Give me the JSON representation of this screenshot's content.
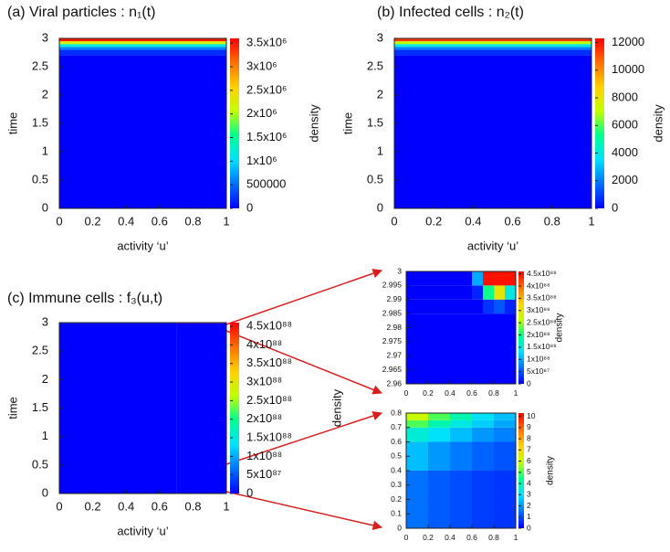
{
  "colormap": [
    "#0000ff",
    "#0070ff",
    "#00e0ff",
    "#00ff90",
    "#c0ff00",
    "#ffd000",
    "#ff7000",
    "#ff0000"
  ],
  "chart_data": [
    {
      "type": "heatmap",
      "title": "(a) Viral particles : n₁(t)",
      "xlabel": "activity ‘u’",
      "ylabel": "time",
      "colorbar_label": "density",
      "xlim": [
        0,
        1
      ],
      "xticks": [
        0,
        0.2,
        0.4,
        0.6,
        0.8,
        1
      ],
      "ylim": [
        0,
        3
      ],
      "yticks": [
        0,
        0.5,
        1,
        1.5,
        2,
        2.5,
        3
      ],
      "clim": [
        0,
        3600000
      ],
      "cticks": [
        0,
        500000,
        {
          "value": 1000000,
          "label": "1x10⁶"
        },
        {
          "value": 1500000,
          "label": "1.5x10⁶"
        },
        {
          "value": 2000000,
          "label": "2x10⁶"
        },
        {
          "value": 2500000,
          "label": "2.5x10⁶"
        },
        {
          "value": 3000000,
          "label": "3x10⁶"
        },
        {
          "value": 3500000,
          "label": "3.5x10⁶"
        }
      ],
      "xbins": [
        0,
        1
      ],
      "ybins": [
        0,
        2.7,
        2.8,
        2.85,
        2.9,
        2.95,
        3
      ],
      "values": [
        [
          0
        ],
        [
          200000
        ],
        [
          600000
        ],
        [
          1200000
        ],
        [
          2200000
        ],
        [
          3500000
        ]
      ]
    },
    {
      "type": "heatmap",
      "title": "(b) Infected cells : n₂(t)",
      "xlabel": "activity ‘u’",
      "ylabel": "time",
      "colorbar_label": "density",
      "xlim": [
        0,
        1
      ],
      "xticks": [
        0,
        0.2,
        0.4,
        0.6,
        0.8,
        1
      ],
      "ylim": [
        0,
        3
      ],
      "yticks": [
        0,
        0.5,
        1,
        1.5,
        2,
        2.5,
        3
      ],
      "clim": [
        0,
        12300
      ],
      "cticks": [
        0,
        2000,
        4000,
        6000,
        8000,
        10000,
        12000
      ],
      "xbins": [
        0,
        1
      ],
      "ybins": [
        0,
        2.7,
        2.8,
        2.85,
        2.9,
        2.95,
        3
      ],
      "values": [
        [
          0
        ],
        [
          700
        ],
        [
          2000
        ],
        [
          4000
        ],
        [
          7000
        ],
        [
          11500
        ]
      ]
    },
    {
      "type": "heatmap",
      "title": "(c) Immune cells : f₃(u,t)",
      "xlabel": "activity ‘u’",
      "ylabel": "time",
      "colorbar_label": "density",
      "xlim": [
        0,
        1
      ],
      "xticks": [
        0,
        0.2,
        0.4,
        0.6,
        0.8,
        1
      ],
      "ylim": [
        0,
        3
      ],
      "yticks": [
        0,
        0.5,
        1,
        1.5,
        2,
        2.5,
        3
      ],
      "clim": [
        0,
        4.6e+88
      ],
      "cticks": [
        0,
        {
          "value": 5e+87,
          "label": "5x10⁸⁷"
        },
        {
          "value": 1e+88,
          "label": "1x10⁸⁸"
        },
        {
          "value": 1.5e+88,
          "label": "1.5x10⁸⁸"
        },
        {
          "value": 2e+88,
          "label": "2x10⁸⁸"
        },
        {
          "value": 2.5e+88,
          "label": "2.5x10⁸⁸"
        },
        {
          "value": 3e+88,
          "label": "3x10⁸⁸"
        },
        {
          "value": 3.5e+88,
          "label": "3.5x10⁸⁸"
        },
        {
          "value": 4e+88,
          "label": "4x10⁸⁸"
        },
        {
          "value": 4.5e+88,
          "label": "4.5x10⁸⁸"
        }
      ],
      "xbins": [
        0,
        0.7,
        1
      ],
      "ybins": [
        0,
        2.99,
        3
      ],
      "values": [
        [
          0,
          0
        ],
        [
          0,
          4.5e+88
        ]
      ]
    },
    {
      "type": "heatmap",
      "colorbar_label": "density",
      "xlim": [
        0,
        1
      ],
      "xticks": [
        0,
        0.2,
        0.4,
        0.6,
        0.8,
        1
      ],
      "ylim": [
        2.96,
        3
      ],
      "yticks": [
        2.96,
        2.965,
        2.97,
        2.975,
        2.98,
        2.985,
        2.99,
        2.995,
        3
      ],
      "clim": [
        0,
        4.6e+88
      ],
      "cticks": [
        0,
        {
          "value": 5e+87,
          "label": "5x10⁸⁷"
        },
        {
          "value": 1e+88,
          "label": "1x10⁸⁸"
        },
        {
          "value": 1.5e+88,
          "label": "1.5x10⁸⁸"
        },
        {
          "value": 2e+88,
          "label": "2x10⁸⁸"
        },
        {
          "value": 2.5e+88,
          "label": "2.5x10⁸⁸"
        },
        {
          "value": 3e+88,
          "label": "3x10⁸⁸"
        },
        {
          "value": 3.5e+88,
          "label": "3.5x10⁸⁸"
        },
        {
          "value": 4e+88,
          "label": "4x10⁸⁸"
        },
        {
          "value": 4.5e+88,
          "label": "4.5x10⁸⁸"
        }
      ],
      "xbins": [
        0,
        0.6,
        0.7,
        0.8,
        0.9,
        1
      ],
      "ybins": [
        2.96,
        2.985,
        2.99,
        2.995,
        3
      ],
      "values": [
        [
          0,
          0,
          0,
          0,
          0
        ],
        [
          0,
          0,
          3e+87,
          5e+87,
          2e+87
        ],
        [
          0,
          2e+87,
          2e+88,
          3e+88,
          1.5e+88
        ],
        [
          0,
          1e+88,
          4.5e+88,
          4.5e+88,
          4.5e+88
        ]
      ]
    },
    {
      "type": "heatmap",
      "colorbar_label": "density",
      "xlim": [
        0,
        1
      ],
      "xticks": [
        0,
        0.2,
        0.4,
        0.6,
        0.8,
        1
      ],
      "ylim": [
        0,
        0.8
      ],
      "yticks": [
        0,
        0.1,
        0.2,
        0.3,
        0.4,
        0.5,
        0.6,
        0.7,
        0.8
      ],
      "clim": [
        0,
        10.3
      ],
      "cticks": [
        0,
        1,
        2,
        3,
        4,
        5,
        6,
        7,
        8,
        9,
        10
      ],
      "xbins": [
        0,
        0.2,
        0.4,
        0.6,
        0.8,
        1
      ],
      "ybins": [
        0,
        0.4,
        0.6,
        0.7,
        0.75,
        0.8
      ],
      "values": [
        [
          1.5,
          1.2,
          1,
          0.8,
          0.7
        ],
        [
          2.5,
          2,
          1.6,
          1.3,
          1.1
        ],
        [
          3.5,
          3,
          2.5,
          2,
          1.7
        ],
        [
          5,
          4,
          3.3,
          2.7,
          2.2
        ],
        [
          6,
          5,
          4,
          3,
          2.5
        ]
      ]
    }
  ]
}
